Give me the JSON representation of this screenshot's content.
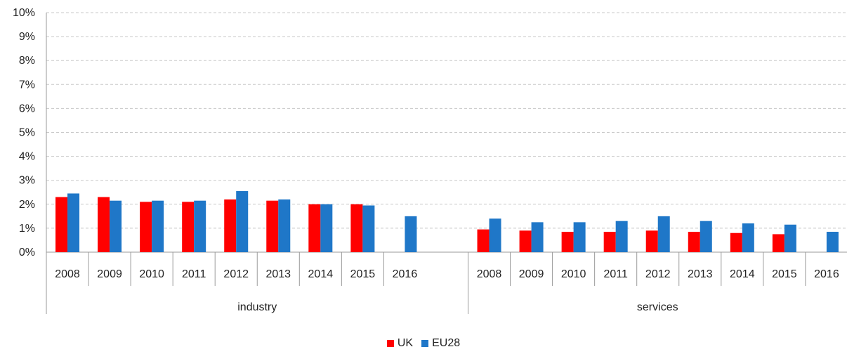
{
  "chart_data": {
    "type": "bar",
    "groups": [
      {
        "label": "industry",
        "categories": [
          "2008",
          "2009",
          "2010",
          "2011",
          "2012",
          "2013",
          "2014",
          "2015",
          "2016"
        ],
        "series": [
          {
            "name": "UK",
            "values": [
              2.3,
              2.3,
              2.1,
              2.1,
              2.2,
              2.15,
              2.0,
              2.0,
              null
            ]
          },
          {
            "name": "EU28",
            "values": [
              2.45,
              2.15,
              2.15,
              2.15,
              2.55,
              2.2,
              2.0,
              1.95,
              1.5
            ]
          }
        ]
      },
      {
        "label": "services",
        "categories": [
          "2008",
          "2009",
          "2010",
          "2011",
          "2012",
          "2013",
          "2014",
          "2015",
          "2016"
        ],
        "series": [
          {
            "name": "UK",
            "values": [
              0.95,
              0.9,
              0.85,
              0.85,
              0.9,
              0.85,
              0.8,
              0.75,
              null
            ]
          },
          {
            "name": "EU28",
            "values": [
              1.4,
              1.25,
              1.25,
              1.3,
              1.5,
              1.3,
              1.2,
              1.15,
              0.85
            ]
          }
        ]
      }
    ],
    "yticks": [
      "0%",
      "1%",
      "2%",
      "3%",
      "4%",
      "5%",
      "6%",
      "7%",
      "8%",
      "9%",
      "10%"
    ],
    "ylim": [
      0,
      10
    ],
    "grid": true,
    "legend_position": "bottom",
    "colors": {
      "UK": "#ff0000",
      "EU28": "#1f77c8"
    },
    "legend": [
      {
        "name": "UK",
        "color": "#ff0000"
      },
      {
        "name": "EU28",
        "color": "#1f77c8"
      }
    ]
  }
}
